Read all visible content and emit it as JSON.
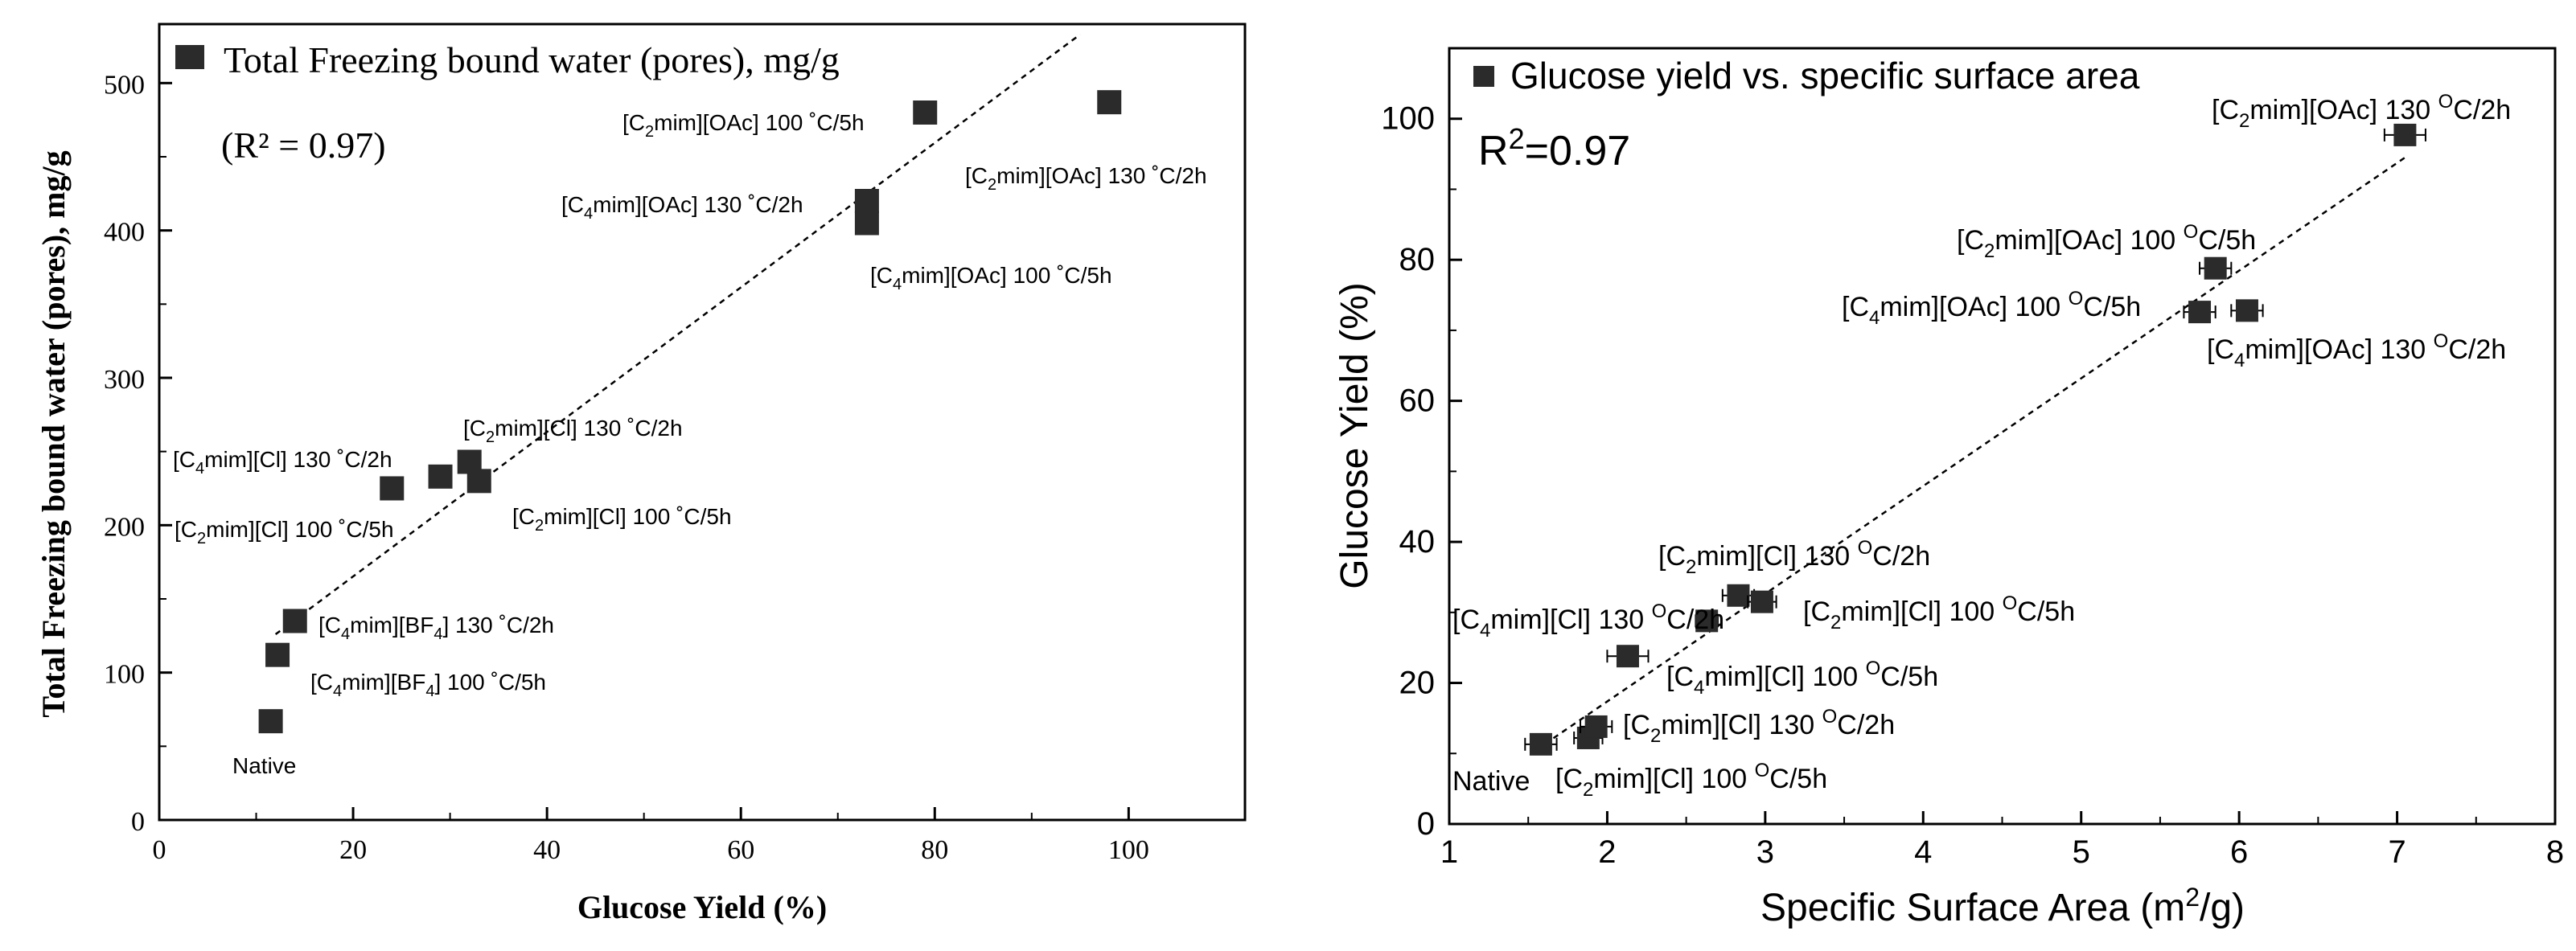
{
  "chart_data": [
    {
      "type": "scatter",
      "id": "left",
      "legend": "Total Freezing bound water (pores), mg/g",
      "r2_text": "(R² = 0.97)",
      "xlabel": "Glucose Yield (%)",
      "ylabel": "Total Freezing bound water (pores), mg/g",
      "xlim": [
        0,
        112
      ],
      "ylim": [
        0,
        540
      ],
      "xticks": [
        "0",
        "20",
        "40",
        "60",
        "80",
        "100"
      ],
      "yticks": [
        "0",
        "100",
        "200",
        "300",
        "400",
        "500"
      ],
      "points": [
        {
          "label": "Native",
          "x": 11.5,
          "y": 67
        },
        {
          "label": "[C4mim][BF4] 100 °C/5h",
          "x": 12.2,
          "y": 112
        },
        {
          "label": "[C4mim][BF4] 130 °C/2h",
          "x": 14,
          "y": 135
        },
        {
          "label": "[C4mim][Cl] 130 °C/2h",
          "x": 24,
          "y": 225
        },
        {
          "label": "[C2mim][Cl] 100 °C/5h",
          "x": 29,
          "y": 233
        },
        {
          "label": "[C2mim][Cl] 130 °C/2h",
          "x": 32,
          "y": 243
        },
        {
          "label": "[C2mim][Cl] 100 °C/5h",
          "x": 33,
          "y": 230
        },
        {
          "label": "[C4mim][OAc] 100 °C/5h",
          "x": 73,
          "y": 405
        },
        {
          "label": "[C4mim][OAc] 130 °C/2h",
          "x": 73,
          "y": 420
        },
        {
          "label": "[C2mim][OAc] 100 °C/5h",
          "x": 79,
          "y": 480
        },
        {
          "label": "[C2mim][OAc] 130 °C/2h",
          "x": 98,
          "y": 487
        }
      ],
      "fit_line": {
        "x": [
          12,
          95
        ],
        "y": [
          126,
          533
        ]
      },
      "annotations": {
        "native": "Native",
        "bf4_100": {
          "a": "[C",
          "sub1": "4",
          "b": "mim][BF",
          "sub2": "4",
          "c": "] 100 ˚C/5h"
        },
        "bf4_130": {
          "a": "[C",
          "sub1": "4",
          "b": "mim][BF",
          "sub2": "4",
          "c": "] 130 ˚C/2h"
        },
        "c4cl_130": {
          "a": "[C",
          "sub": "4",
          "b": "mim][Cl] 130 ˚C/2h"
        },
        "c2cl_100a": {
          "a": "[C",
          "sub": "2",
          "b": "mim][Cl] 100 ˚C/5h"
        },
        "c2cl_130": {
          "a": "[C",
          "sub": "2",
          "b": "mim][Cl] 130 ˚C/2h"
        },
        "c2cl_100b": {
          "a": "[C",
          "sub": "2",
          "b": "mim][Cl] 100 ˚C/5h"
        },
        "c4oac_130": {
          "a": "[C",
          "sub": "4",
          "b": "mim][OAc] 130 ˚C/2h"
        },
        "c4oac_100": {
          "a": "[C",
          "sub": "4",
          "b": "mim][OAc] 100 ˚C/5h"
        },
        "c2oac_100": {
          "a": "[C",
          "sub": "2",
          "b": "mim][OAc] 100 ˚C/5h"
        },
        "c2oac_130": {
          "a": "[C",
          "sub": "2",
          "b": "mim][OAc] 130 ˚C/2h"
        }
      }
    },
    {
      "type": "scatter",
      "id": "right",
      "legend": "Glucose yield vs. specific surface area",
      "r2_text": {
        "a": "R",
        "sup": "2",
        "b": "=0.97"
      },
      "xlabel": {
        "a": "Specific Surface Area (m",
        "sup": "2",
        "b": "/g)"
      },
      "ylabel": "Glucose Yield (%)",
      "xlim": [
        1,
        8
      ],
      "ylim": [
        0,
        110
      ],
      "xticks": [
        "1",
        "2",
        "3",
        "4",
        "5",
        "6",
        "7",
        "8"
      ],
      "yticks": [
        "0",
        "20",
        "40",
        "60",
        "80",
        "100"
      ],
      "points": [
        {
          "label": "Native",
          "x": 1.58,
          "y": 11.3,
          "xerr": 0.1
        },
        {
          "label": "[C2mim][Cl] 100 °C/5h",
          "x": 1.88,
          "y": 12.2,
          "xerr": 0.09
        },
        {
          "label": "[C2mim][Cl] 130 °C/2h",
          "x": 1.93,
          "y": 13.8,
          "xerr": 0.1
        },
        {
          "label": "[C4mim][Cl] 100 °C/5h",
          "x": 2.13,
          "y": 23.8,
          "xerr": 0.13
        },
        {
          "label": "[C4mim][Cl] 130 °C/2h",
          "x": 2.63,
          "y": 28.8,
          "xerr": 0.07
        },
        {
          "label": "[C2mim][Cl] 130 °C/2h",
          "x": 2.83,
          "y": 32.4,
          "xerr": 0.1
        },
        {
          "label": "[C2mim][Cl] 100 °C/5h",
          "x": 2.98,
          "y": 31.5,
          "xerr": 0.09
        },
        {
          "label": "[C4mim][OAc] 100 °C/5h",
          "x": 5.75,
          "y": 72.6,
          "xerr": 0.1
        },
        {
          "label": "[C2mim][OAc] 100 °C/5h",
          "x": 5.85,
          "y": 78.8,
          "xerr": 0.1
        },
        {
          "label": "[C4mim][OAc] 130 °C/2h",
          "x": 6.05,
          "y": 72.8,
          "xerr": 0.1
        },
        {
          "label": "[C2mim][OAc] 130 °C/2h",
          "x": 7.05,
          "y": 97.7,
          "xerr": 0.13
        }
      ],
      "fit_line": {
        "x": [
          1.55,
          7.05
        ],
        "y": [
          10.5,
          94.5
        ]
      },
      "annotations": {
        "native": "Native",
        "c2cl_100a": {
          "a": "[C",
          "sub": "2",
          "b": "mim][Cl] 100 ",
          "sup": "O",
          "c": "C/5h"
        },
        "c2cl_130a": {
          "a": "[C",
          "sub": "2",
          "b": "mim][Cl] 130 ",
          "sup": "O",
          "c": "C/2h"
        },
        "c4cl_100": {
          "a": "[C",
          "sub": "4",
          "b": "mim][Cl] 100 ",
          "sup": "O",
          "c": "C/5h"
        },
        "c4cl_130": {
          "a": "[C",
          "sub": "4",
          "b": "mim][Cl] 130 ",
          "sup": "O",
          "c": "C/2h"
        },
        "c2cl_130b": {
          "a": "[C",
          "sub": "2",
          "b": "mim][Cl] 130 ",
          "sup": "O",
          "c": "C/2h"
        },
        "c2cl_100b": {
          "a": "[C",
          "sub": "2",
          "b": "mim][Cl] 100 ",
          "sup": "O",
          "c": "C/5h"
        },
        "c4oac_100": {
          "a": "[C",
          "sub": "4",
          "b": "mim][OAc] 100 ",
          "sup": "O",
          "c": "C/5h"
        },
        "c2oac_100": {
          "a": "[C",
          "sub": "2",
          "b": "mim][OAc] 100 ",
          "sup": "O",
          "c": "C/5h"
        },
        "c4oac_130": {
          "a": "[C",
          "sub": "4",
          "b": "mim][OAc] 130 ",
          "sup": "O",
          "c": "C/2h"
        },
        "c2oac_130": {
          "a": "[C",
          "sub": "2",
          "b": "mim][OAc] 130 ",
          "sup": "O",
          "c": "C/2h"
        }
      }
    }
  ],
  "colors": {
    "marker": "#2b2b2b",
    "axis": "#000000",
    "background": "#ffffff"
  }
}
